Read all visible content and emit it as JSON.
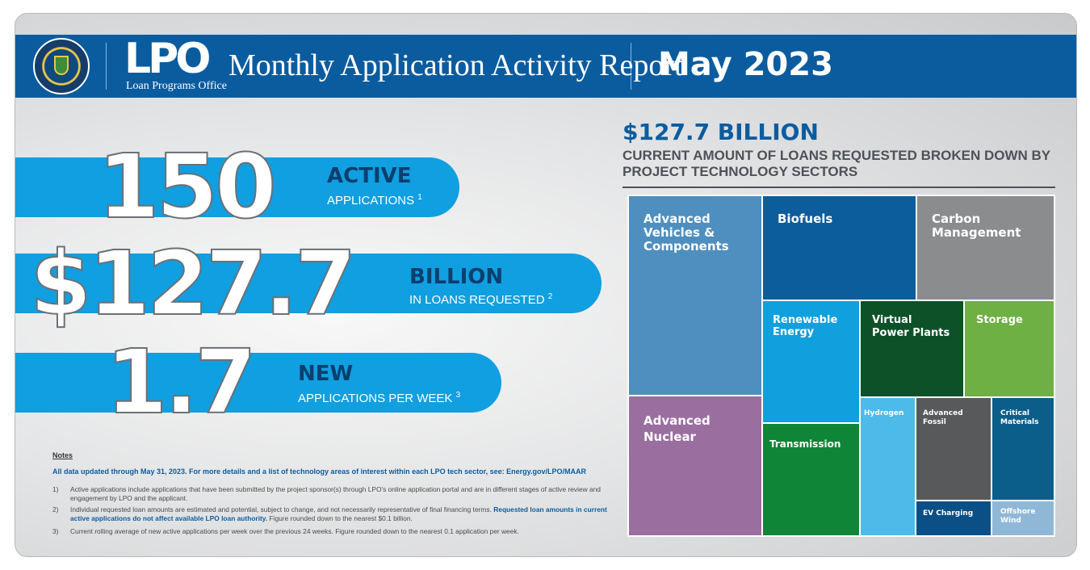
{
  "header": {
    "logo_text": "LPO",
    "logo_subtitle": "Loan Programs Office",
    "title": "Monthly Application Activity Report",
    "month": "May 2023",
    "background_color": "#0b5c9f"
  },
  "stats": [
    {
      "value": "150",
      "title": "ACTIVE",
      "subtitle": "APPLICATIONS",
      "note": "1"
    },
    {
      "value": "$127.7",
      "title": "BILLION",
      "subtitle": "IN LOANS REQUESTED",
      "note": "2"
    },
    {
      "value": "1.7",
      "title": "NEW",
      "subtitle": "APPLICATIONS PER WEEK",
      "note": "3"
    }
  ],
  "notes": {
    "heading": "Notes",
    "intro": "All data updated through May 31, 2023. For more details and a list of technology areas of interest within each LPO tech sector, see:",
    "link": "Energy.gov/LPO/MAAR",
    "items": [
      {
        "num": "1)",
        "text": "Active applications include applications that have been submitted by the project sponsor(s) through LPO's online application portal and are in different stages of active review and engagement by LPO and the applicant."
      },
      {
        "num": "2)",
        "text": "Individual requested loan amounts are estimated and potential, subject to change, and not necessarily representative of final financing terms.",
        "highlight": "Requested loan amounts in current active applications do not affect available LPO loan authority.",
        "tail": "Figure rounded down to the nearest $0.1 billion."
      },
      {
        "num": "3)",
        "text": "Current rolling average of new active applications per week over the previous 24 weeks. Figure rounded down to the nearest 0.1 application per week."
      }
    ]
  },
  "treemap": {
    "amount": "$127.7 BILLION",
    "subtitle": "CURRENT AMOUNT OF LOANS REQUESTED BROKEN DOWN BY PROJECT TECHNOLOGY SECTORS",
    "sectors": [
      {
        "label": "Advanced Vehicles & Components",
        "color": "#4e8fbf"
      },
      {
        "label": "Biofuels",
        "color": "#0c5d9c"
      },
      {
        "label": "Carbon Management",
        "color": "#8a8c8e"
      },
      {
        "label": "Advanced Nuclear",
        "color": "#9a6fa0"
      },
      {
        "label": "Renewable Energy",
        "color": "#10a0dd"
      },
      {
        "label": "Virtual Power Plants",
        "color": "#0d5128"
      },
      {
        "label": "Storage",
        "color": "#6eb043"
      },
      {
        "label": "Transmission",
        "color": "#0e8537"
      },
      {
        "label": "Hydrogen",
        "color": "#4cbbe9"
      },
      {
        "label": "Advanced Fossil",
        "color": "#58595b"
      },
      {
        "label": "Critical Materials",
        "color": "#0c5e8a"
      },
      {
        "label": "EV Charging",
        "color": "#0a4f86"
      },
      {
        "label": "Offshore Wind",
        "color": "#8fb8d6"
      }
    ]
  }
}
